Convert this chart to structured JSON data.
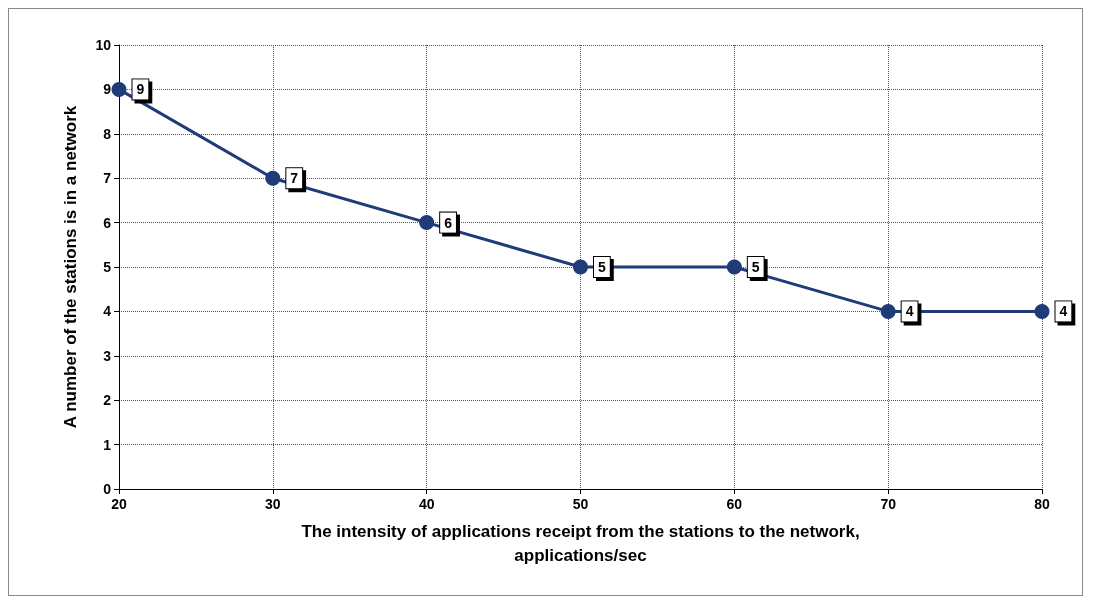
{
  "chart_data": {
    "type": "line",
    "xlabel": "The intensity of applications receipt from the stations to the network,\napplications/sec",
    "ylabel": "A number of the stations is in a network",
    "x": [
      20,
      30,
      40,
      50,
      60,
      70,
      80
    ],
    "series": [
      {
        "color": "#1f3c78",
        "values": [
          9,
          7,
          6,
          5,
          5,
          4,
          4
        ]
      }
    ],
    "xlim": [
      20,
      80
    ],
    "xticks": [
      20,
      30,
      40,
      50,
      60,
      70,
      80
    ],
    "ylim": [
      0,
      10
    ],
    "yticks": [
      0,
      1,
      2,
      3,
      4,
      5,
      6,
      7,
      8,
      9,
      10
    ],
    "grid": true,
    "marker": "circle",
    "line_style": "solid",
    "data_labels": true
  }
}
